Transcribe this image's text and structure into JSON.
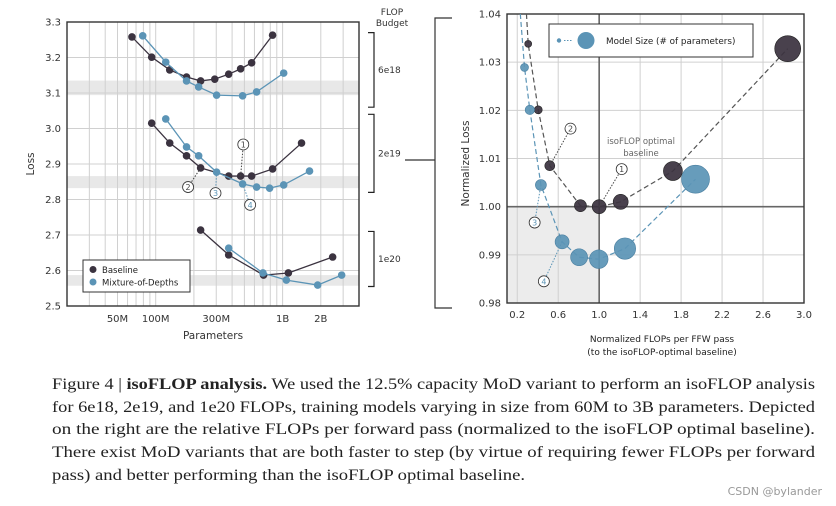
{
  "colors": {
    "baseline": "#3b3340",
    "mod": "#5b94b6",
    "band": "#e8e8e8",
    "grid": "#d0d0d0"
  },
  "chart_data": [
    {
      "type": "line",
      "xlabel": "Parameters",
      "ylabel": "Loss",
      "xscale": "log",
      "xlim": [
        20000000,
        4000000000
      ],
      "ylim": [
        2.5,
        3.3
      ],
      "xticks": [
        {
          "v": 50000000,
          "label": "50M"
        },
        {
          "v": 100000000,
          "label": "100M"
        },
        {
          "v": 300000000,
          "label": "300M"
        },
        {
          "v": 1000000000,
          "label": "1B"
        },
        {
          "v": 2000000000,
          "label": "2B"
        }
      ],
      "yticks": [
        {
          "v": 2.5,
          "label": "2.5"
        },
        {
          "v": 2.6,
          "label": "2.6"
        },
        {
          "v": 2.7,
          "label": "2.7"
        },
        {
          "v": 2.8,
          "label": "2.8"
        },
        {
          "v": 2.9,
          "label": "2.9"
        },
        {
          "v": 3.0,
          "label": "3.0"
        },
        {
          "v": 3.1,
          "label": "3.1"
        },
        {
          "v": 3.2,
          "label": "3.2"
        },
        {
          "v": 3.3,
          "label": "3.3"
        }
      ],
      "grid": true,
      "legend": {
        "placement": "bottom-left",
        "entries": [
          "Baseline",
          "Mixture-of-Depths"
        ]
      },
      "budget_header": [
        "FLOP",
        "Budget"
      ],
      "budgets": [
        {
          "label": "6e18",
          "band": [
            3.094,
            3.135
          ],
          "bracket": [
            3.06,
            3.27
          ],
          "series": [
            {
              "name": "Baseline",
              "x": [
                65000000,
                93000000,
                129000000,
                175000000,
                226000000,
                292000000,
                376000000,
                467000000,
                570000000,
                834000000
              ],
              "y": [
                3.258,
                3.201,
                3.165,
                3.145,
                3.134,
                3.139,
                3.153,
                3.168,
                3.185,
                3.263
              ]
            },
            {
              "name": "Mixture-of-Depths",
              "x": [
                79000000,
                120000000,
                175000000,
                218000000,
                302000000,
                484000000,
                624000000,
                1020000000
              ],
              "y": [
                3.261,
                3.187,
                3.134,
                3.117,
                3.094,
                3.092,
                3.103,
                3.156
              ]
            }
          ]
        },
        {
          "label": "2e19",
          "band": [
            2.832,
            2.866
          ],
          "bracket": [
            2.82,
            3.04
          ],
          "series": [
            {
              "name": "Baseline",
              "x": [
                93000000,
                129000000,
                175000000,
                226000000,
                376000000,
                467000000,
                570000000,
                834000000,
                1410000000
              ],
              "y": [
                3.015,
                2.959,
                2.923,
                2.889,
                2.866,
                2.866,
                2.866,
                2.886,
                2.959
              ]
            },
            {
              "name": "Mixture-of-Depths",
              "x": [
                120000000,
                175000000,
                218000000,
                302000000,
                484000000,
                624000000,
                790000000,
                1020000000,
                1630000000
              ],
              "y": [
                3.027,
                2.948,
                2.923,
                2.877,
                2.844,
                2.835,
                2.832,
                2.841,
                2.88
              ]
            }
          ]
        },
        {
          "label": "1e20",
          "band": [
            2.557,
            2.587
          ],
          "bracket": [
            2.555,
            2.71
          ],
          "series": [
            {
              "name": "Baseline",
              "x": [
                226000000,
                376000000,
                708000000,
                1110000000,
                2480000000
              ],
              "y": [
                2.714,
                2.644,
                2.587,
                2.593,
                2.638
              ]
            },
            {
              "name": "Mixture-of-Depths",
              "x": [
                376000000,
                700000000,
                1070000000,
                1890000000,
                2920000000
              ],
              "y": [
                2.663,
                2.593,
                2.573,
                2.559,
                2.587
              ]
            }
          ]
        }
      ],
      "annotations": [
        {
          "label": "1",
          "x": 467000000,
          "y": 2.866,
          "tx": 490000000,
          "ty": 2.955,
          "series": "Baseline"
        },
        {
          "label": "2",
          "x": 226000000,
          "y": 2.889,
          "tx": 180000000,
          "ty": 2.835,
          "series": "Baseline"
        },
        {
          "label": "3",
          "x": 302000000,
          "y": 2.877,
          "tx": 296000000,
          "ty": 2.818,
          "series": "Mixture-of-Depths"
        },
        {
          "label": "4",
          "x": 484000000,
          "y": 2.844,
          "tx": 555000000,
          "ty": 2.785,
          "series": "Mixture-of-Depths"
        }
      ]
    },
    {
      "type": "scatter",
      "xlabel": [
        "Normalized FLOPs per FFW pass",
        "(to the isoFLOP-optimal baseline)"
      ],
      "ylabel": "Normalized Loss",
      "xlim": [
        0.1,
        3.0
      ],
      "ylim": [
        0.98,
        1.04
      ],
      "xticks": [
        "0.2",
        "0.6",
        "1.0",
        "1.4",
        "1.8",
        "2.2",
        "2.6",
        "3.0"
      ],
      "yticks": [
        "0.98",
        "0.99",
        "1.00",
        "1.01",
        "1.02",
        "1.03",
        "1.04"
      ],
      "grid": true,
      "legend": {
        "placement": "top",
        "entries": [
          "Model Size (# of parameters)"
        ]
      },
      "shaded_region": {
        "x": [
          0.1,
          1.0
        ],
        "y": [
          0.98,
          1.0
        ]
      },
      "reference_label": [
        "isoFLOP optimal",
        "baseline"
      ],
      "series": [
        {
          "name": "Baseline",
          "x": [
            0.307,
            0.405,
            0.518,
            0.817,
            1.0,
            1.21,
            1.72,
            2.841
          ],
          "y": [
            1.0338,
            1.0201,
            1.0085,
            1.0002,
            1.0,
            1.001,
            1.0074,
            1.0328
          ],
          "size_rank": [
            1,
            2,
            3,
            4,
            5,
            6,
            7,
            8
          ],
          "offchart_start": [
            0.29,
            1.04
          ]
        },
        {
          "name": "Mixture-of-Depths",
          "x": [
            0.271,
            0.323,
            0.431,
            0.638,
            0.804,
            0.996,
            1.252,
            1.941
          ],
          "y": [
            1.0289,
            1.0201,
            1.0045,
            0.9927,
            0.9895,
            0.9891,
            0.9913,
            1.0057
          ],
          "size_rank": [
            1,
            2,
            3,
            4,
            5,
            6,
            7,
            8
          ],
          "offchart_start": [
            0.23,
            1.04
          ]
        }
      ],
      "annotations": [
        {
          "label": "1",
          "x": 1.0,
          "y": 1.0,
          "tx": 1.22,
          "ty": 1.0078,
          "series": "Baseline"
        },
        {
          "label": "2",
          "x": 0.518,
          "y": 1.0085,
          "tx": 0.72,
          "ty": 1.0162,
          "series": "Baseline"
        },
        {
          "label": "3",
          "x": 0.431,
          "y": 1.0045,
          "tx": 0.37,
          "ty": 0.9967,
          "series": "Mixture-of-Depths"
        },
        {
          "label": "4",
          "x": 0.638,
          "y": 0.9927,
          "tx": 0.46,
          "ty": 0.9845,
          "series": "Mixture-of-Depths"
        }
      ]
    }
  ],
  "caption": {
    "figure_label": "Figure 4 | ",
    "title": "isoFLOP analysis.",
    "lines": [
      " We used the 12.5% capacity MoD variant to perform an isoFLOP analysis",
      "for 6e18, 2e19, and 1e20 FLOPs, training models varying in size from 60M to 3B parameters. Depicted",
      "on the right are the relative FLOPs per forward pass (normalized to the isoFLOP optimal baseline).",
      "There exist MoD variants that are both faster to step (by virtue of requiring fewer FLOPs per forward",
      "pass) and better performing than the isoFLOP optimal baseline."
    ]
  },
  "watermark": "CSDN @bylander"
}
